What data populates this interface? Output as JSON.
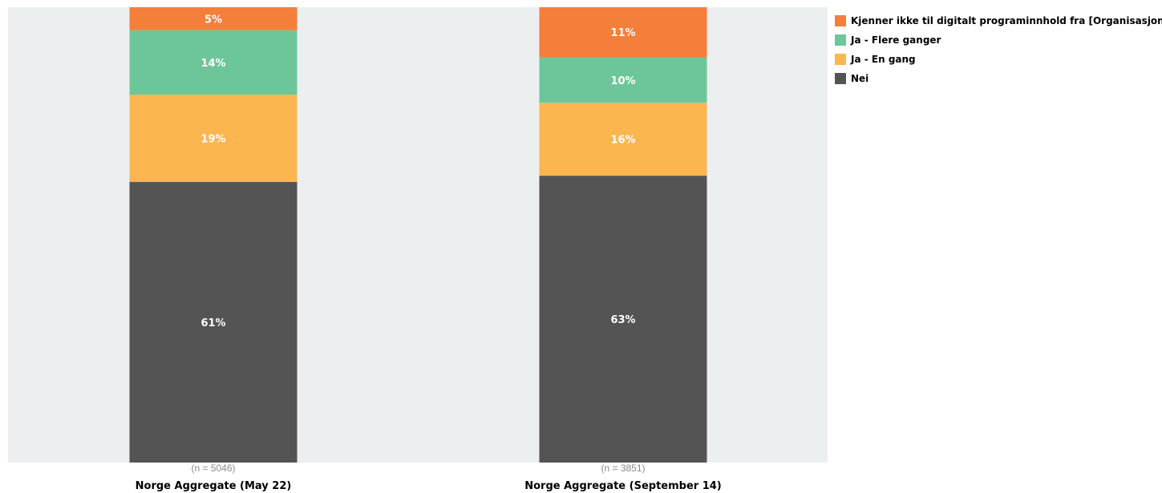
{
  "chart_data": {
    "type": "bar",
    "stacked": true,
    "value_unit": "%",
    "ylim": [
      0,
      100
    ],
    "grid": false,
    "legend_position": "top-right",
    "background_color": "#ebeff0",
    "categories": [
      "Norge Aggregate (May 22)",
      "Norge Aggregate (September 14)"
    ],
    "sample_sizes": [
      "(n = 5046)",
      "(n = 3851)"
    ],
    "series": [
      {
        "name": "Nei",
        "color": "#545454",
        "values": [
          61,
          63
        ],
        "labels": [
          "61%",
          "63%"
        ]
      },
      {
        "name": "Ja - En gang",
        "color": "#fbb650",
        "values": [
          19,
          16
        ],
        "labels": [
          "19%",
          "16%"
        ]
      },
      {
        "name": "Ja - Flere ganger",
        "color": "#6dc69a",
        "values": [
          14,
          10
        ],
        "labels": [
          "14%",
          "10%"
        ]
      },
      {
        "name": "Kjenner ikke til digitalt programinnhold fra [Organisasjonsnavn]",
        "color": "#f47f3b",
        "values": [
          5,
          11
        ],
        "labels": [
          "5%",
          "11%"
        ]
      }
    ]
  }
}
